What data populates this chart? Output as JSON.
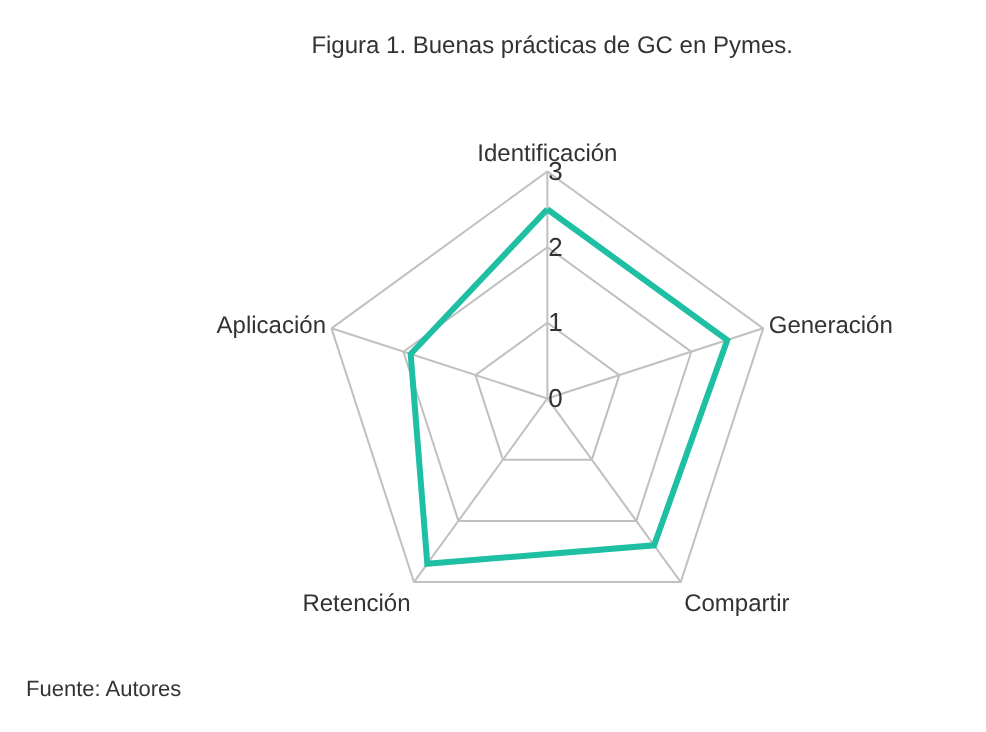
{
  "chart_data": {
    "type": "radar",
    "title": "Figura 1. Buenas prácticas de GC en Pymes.",
    "categories": [
      "Identificación",
      "Generación",
      "Compartir",
      "Retención",
      "Aplicación"
    ],
    "series": [
      {
        "color": "#1fbfa3",
        "values": [
          2.5,
          2.5,
          2.4,
          2.7,
          1.9
        ]
      }
    ],
    "ylim": [
      0,
      3
    ],
    "yticks": [
      0,
      1,
      2,
      3
    ],
    "grid": true,
    "marker": "none",
    "line_style": "solid",
    "annotations": [
      "Fuente: Autores"
    ]
  }
}
